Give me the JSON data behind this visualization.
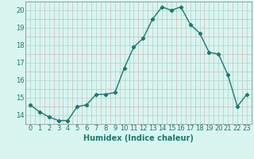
{
  "x": [
    0,
    1,
    2,
    3,
    4,
    5,
    6,
    7,
    8,
    9,
    10,
    11,
    12,
    13,
    14,
    15,
    16,
    17,
    18,
    19,
    20,
    21,
    22,
    23
  ],
  "y": [
    14.6,
    14.2,
    13.9,
    13.7,
    13.7,
    14.5,
    14.6,
    15.2,
    15.2,
    15.3,
    16.7,
    17.9,
    18.4,
    19.5,
    20.2,
    20.0,
    20.2,
    19.2,
    18.7,
    17.6,
    17.5,
    16.3,
    14.5,
    15.2
  ],
  "line_color": "#1a7a6e",
  "bg_color": "#d8f5f0",
  "grid_color_major": "#c8e8e0",
  "grid_color_minor": "#e0c8c8",
  "xlabel": "Humidex (Indice chaleur)",
  "ylim": [
    13.5,
    20.5
  ],
  "xlim": [
    -0.5,
    23.5
  ],
  "yticks": [
    14,
    15,
    16,
    17,
    18,
    19,
    20
  ],
  "xticks": [
    0,
    1,
    2,
    3,
    4,
    5,
    6,
    7,
    8,
    9,
    10,
    11,
    12,
    13,
    14,
    15,
    16,
    17,
    18,
    19,
    20,
    21,
    22,
    23
  ],
  "marker": "D",
  "marker_size": 2.2,
  "line_width": 1.0,
  "xlabel_fontsize": 7,
  "tick_fontsize": 6,
  "title_color": "#1a7a6e"
}
